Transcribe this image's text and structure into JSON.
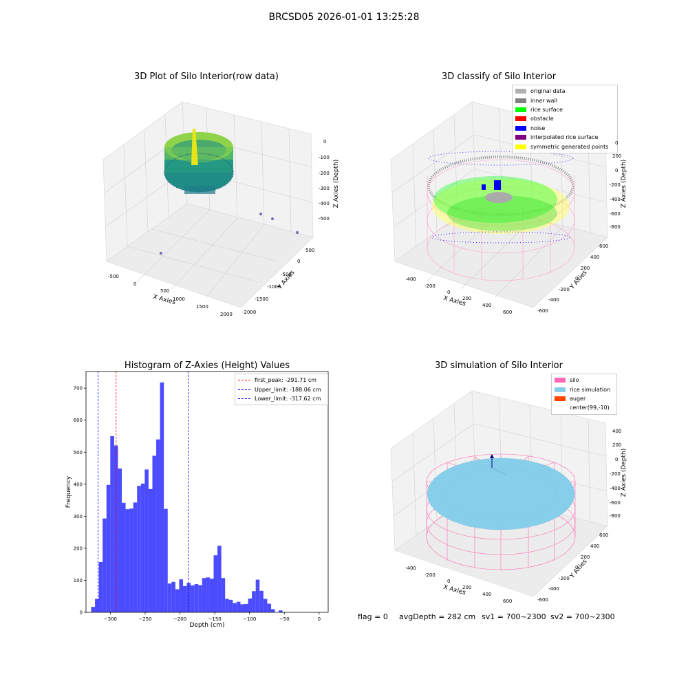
{
  "suptitle": "BRCSD05 2026-01-01 13:25:28",
  "panels": {
    "raw": {
      "title": "3D Plot of Silo Interior(row data)",
      "xlabel": "X Axies",
      "ylabel": "Y Axies",
      "zlabel": "Z Axies (Depth)",
      "xticks": [
        "-500",
        "0",
        "500",
        "1000",
        "1500",
        "2000"
      ],
      "yticks": [
        "500",
        "0",
        "-500",
        "-1000",
        "-1500",
        "-2000"
      ],
      "zticks": [
        "0",
        "-100",
        "-200",
        "-300",
        "-400",
        "-500"
      ]
    },
    "classify": {
      "title": "3D classify of Silo Interior",
      "xlabel": "X Axies",
      "ylabel": "Y Axies",
      "zlabel": "Z Axies (Depth)",
      "xticks": [
        "-400",
        "-200",
        "0",
        "200",
        "400",
        "600"
      ],
      "yticks": [
        "600",
        "400",
        "200",
        "0",
        "-200",
        "-400",
        "-600"
      ],
      "zticks": [
        "200",
        "0",
        "-200",
        "-400",
        "-600",
        "-800"
      ],
      "legend": [
        {
          "label": "original data",
          "color": "#b0b0b0"
        },
        {
          "label": "inner wall",
          "color": "#808080"
        },
        {
          "label": "rice surface",
          "color": "#00ff00"
        },
        {
          "label": "obstacle",
          "color": "#ff0000"
        },
        {
          "label": "noise",
          "color": "#0000ff"
        },
        {
          "label": "interpolated rice surface",
          "color": "#800080"
        },
        {
          "label": "symmetric generated points",
          "color": "#ffff00"
        }
      ],
      "z_partial_label": "0"
    },
    "simulation": {
      "title": "3D simulation of Silo Interior",
      "xlabel": "X Axies",
      "ylabel": "Y Axies",
      "zlabel": "Z Axies (Depth)",
      "xticks": [
        "-400",
        "-200",
        "0",
        "200",
        "400",
        "600"
      ],
      "yticks": [
        "600",
        "400",
        "200",
        "0",
        "-200",
        "-400",
        "-600"
      ],
      "zticks": [
        "400",
        "200",
        "0",
        "-200",
        "-400",
        "-600",
        "-800"
      ],
      "legend": [
        {
          "label": "silo",
          "color": "#ff69b4"
        },
        {
          "label": "rice simulation",
          "color": "#87ceeb"
        },
        {
          "label": "auger",
          "color": "#ff4500"
        },
        {
          "label": "center(99,-10)",
          "color": ""
        }
      ]
    }
  },
  "chart_data": [
    {
      "type": "bar",
      "title": "Histogram of Z-Axies (Height) Values",
      "xlabel": "Depth (cm)",
      "ylabel": "Frequency",
      "xlim": [
        -335,
        13
      ],
      "ylim": [
        0,
        752
      ],
      "xticks": [
        -300,
        -250,
        -200,
        -150,
        -100,
        -50,
        0
      ],
      "yticks": [
        0,
        100,
        200,
        300,
        400,
        500,
        600,
        700
      ],
      "bin_start": -327.6,
      "bin_width": 5.5,
      "color": "#4b4bff",
      "values": [
        17,
        42,
        157,
        293,
        398,
        550,
        521,
        449,
        342,
        322,
        324,
        343,
        395,
        402,
        446,
        385,
        489,
        540,
        718,
        323,
        90,
        95,
        72,
        103,
        82,
        92,
        84,
        88,
        85,
        107,
        109,
        105,
        178,
        208,
        107,
        42,
        39,
        29,
        33,
        25,
        26,
        43,
        66,
        102,
        67,
        42,
        27,
        10,
        0,
        6
      ],
      "vlines": [
        {
          "label": "first_peak: -291.71 cm",
          "x": -291.71,
          "color": "#ff0000"
        },
        {
          "label": "Upper_limit: -188.06 cm",
          "x": -188.06,
          "color": "#0000ff"
        },
        {
          "label": "Lower_limit: -317.62 cm",
          "x": -317.62,
          "color": "#0000ff"
        }
      ],
      "legend_position": "top-right"
    }
  ],
  "status": {
    "flag": "flag = 0",
    "avgDepth": "avgDepth = 282 cm",
    "sv1": "sv1 = 700~2300",
    "sv2": "sv2 = 700~2300"
  }
}
